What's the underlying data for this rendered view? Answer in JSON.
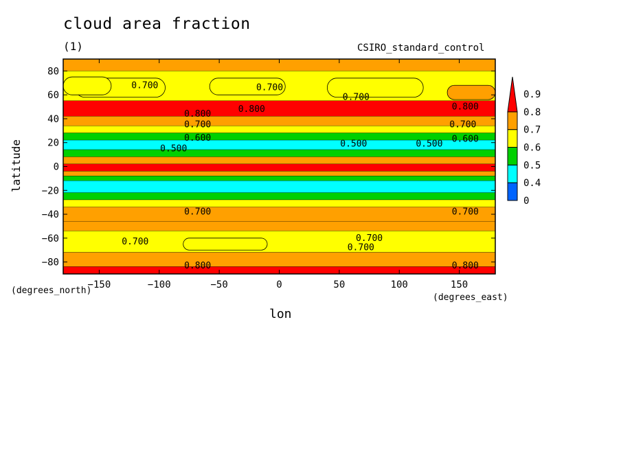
{
  "title": "cloud area fraction",
  "units": "(1)",
  "model_label": "CSIRO_standard_control",
  "chart_data": {
    "type": "heatmap",
    "title": "cloud area fraction",
    "subtitle": "(1)",
    "xlabel": "lon",
    "xlabel_units": "(degrees_east)",
    "ylabel": "latitude",
    "ylabel_units": "(degrees_north)",
    "xlim": [
      -180,
      180
    ],
    "ylim": [
      -90,
      90
    ],
    "xticks": [
      -150,
      -100,
      -50,
      0,
      50,
      100,
      150
    ],
    "yticks": [
      -80,
      -60,
      -40,
      -20,
      0,
      20,
      40,
      60,
      80
    ],
    "colorbar": {
      "levels": [
        0,
        0.4,
        0.5,
        0.6,
        0.7,
        0.8,
        0.9
      ],
      "labels": [
        "0",
        "0.4",
        "0.5",
        "0.6",
        "0.7",
        "0.8",
        "0.9"
      ],
      "colors": [
        "#0064ff",
        "#00ffff",
        "#00d000",
        "#ffff00",
        "#ffa000",
        "#ff0000"
      ],
      "extend_max": true
    },
    "zonal_bands": [
      {
        "lat": [
          80,
          90
        ],
        "value": 0.72
      },
      {
        "lat": [
          55,
          80
        ],
        "value": 0.65
      },
      {
        "lat": [
          42,
          55
        ],
        "value": 0.82
      },
      {
        "lat": [
          34,
          42
        ],
        "value": 0.75
      },
      {
        "lat": [
          28,
          34
        ],
        "value": 0.65
      },
      {
        "lat": [
          22,
          28
        ],
        "value": 0.58
      },
      {
        "lat": [
          14,
          22
        ],
        "value": 0.48
      },
      {
        "lat": [
          8,
          14
        ],
        "value": 0.55
      },
      {
        "lat": [
          2,
          8
        ],
        "value": 0.72
      },
      {
        "lat": [
          -4,
          2
        ],
        "value": 0.92
      },
      {
        "lat": [
          -8,
          -4
        ],
        "value": 0.72
      },
      {
        "lat": [
          -12,
          -8
        ],
        "value": 0.58
      },
      {
        "lat": [
          -22,
          -12
        ],
        "value": 0.45
      },
      {
        "lat": [
          -28,
          -22
        ],
        "value": 0.55
      },
      {
        "lat": [
          -34,
          -28
        ],
        "value": 0.65
      },
      {
        "lat": [
          -46,
          -34
        ],
        "value": 0.75
      },
      {
        "lat": [
          -54,
          -46
        ],
        "value": 0.78
      },
      {
        "lat": [
          -72,
          -54
        ],
        "value": 0.68
      },
      {
        "lat": [
          -84,
          -72
        ],
        "value": 0.75
      },
      {
        "lat": [
          -90,
          -84
        ],
        "value": 0.82
      }
    ],
    "patches": [
      {
        "lon": [
          -170,
          -95
        ],
        "lat": [
          58,
          74
        ],
        "value": 0.65
      },
      {
        "lon": [
          -58,
          5
        ],
        "lat": [
          60,
          74
        ],
        "value": 0.65
      },
      {
        "lon": [
          40,
          120
        ],
        "lat": [
          58,
          74
        ],
        "value": 0.65
      },
      {
        "lon": [
          -180,
          -140
        ],
        "lat": [
          60,
          75
        ],
        "value": 0.65
      },
      {
        "lon": [
          140,
          180
        ],
        "lat": [
          56,
          68
        ],
        "value": 0.72
      },
      {
        "lon": [
          -80,
          -10
        ],
        "lat": [
          -60,
          -70
        ],
        "value": 0.65
      }
    ],
    "contour_labels": [
      {
        "text": "0.700",
        "lon": -112,
        "lat": 68
      },
      {
        "text": "0.700",
        "lon": -8,
        "lat": 66
      },
      {
        "text": "0.700",
        "lon": 64,
        "lat": 58
      },
      {
        "text": "0.800",
        "lon": -68,
        "lat": 44
      },
      {
        "text": "0.800",
        "lon": -23,
        "lat": 48
      },
      {
        "text": "0.800",
        "lon": 155,
        "lat": 50
      },
      {
        "text": "0.700",
        "lon": -68,
        "lat": 35
      },
      {
        "text": "0.700",
        "lon": 153,
        "lat": 35
      },
      {
        "text": "0.600",
        "lon": -68,
        "lat": 24
      },
      {
        "text": "0.600",
        "lon": 155,
        "lat": 23
      },
      {
        "text": "0.500",
        "lon": -88,
        "lat": 15
      },
      {
        "text": "0.500",
        "lon": 62,
        "lat": 19
      },
      {
        "text": "0.500",
        "lon": 125,
        "lat": 19
      },
      {
        "text": "0.700",
        "lon": -68,
        "lat": -38
      },
      {
        "text": "0.700",
        "lon": 155,
        "lat": -38
      },
      {
        "text": "0.700",
        "lon": -120,
        "lat": -63
      },
      {
        "text": "0.700",
        "lon": 75,
        "lat": -60
      },
      {
        "text": "0.700",
        "lon": 68,
        "lat": -68
      },
      {
        "text": "0.800",
        "lon": -68,
        "lat": -83
      },
      {
        "text": "0.800",
        "lon": 155,
        "lat": -83
      }
    ]
  }
}
